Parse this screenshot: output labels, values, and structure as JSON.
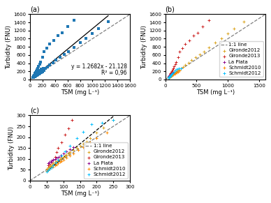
{
  "chart_data": [
    {
      "type": "scatter",
      "title": "(a)",
      "x_label": "TSM (mg L⁻¹)",
      "y_label": "Turbidity (FNU)",
      "annotations": [
        "y = 1.2682x - 21.128",
        "R² = 0,96"
      ],
      "xlim": [
        0,
        1600
      ],
      "ylim": [
        0,
        1600
      ],
      "xticks": [
        0,
        200,
        400,
        600,
        800,
        1000,
        1200,
        1400,
        1600
      ],
      "yticks": [
        0,
        200,
        400,
        600,
        800,
        1000,
        1200,
        1400,
        1600
      ],
      "grid": false,
      "series": [
        {
          "type": "line",
          "color": "gray",
          "line_style": "dashed",
          "x": [
            0,
            1600
          ],
          "values": [
            0,
            1600
          ]
        },
        {
          "type": "line",
          "color": "black",
          "line_style": "solid",
          "x": [
            50,
            1250
          ],
          "values": [
            42.282,
            1564.122
          ]
        },
        {
          "type": "scatter",
          "color": "#1f77b4",
          "marker": "square",
          "x": [
            50,
            55,
            58,
            60,
            62,
            65,
            68,
            70,
            75,
            80,
            85,
            90,
            95,
            100,
            105,
            110,
            115,
            120,
            130,
            140,
            150,
            160,
            170,
            180,
            200,
            220,
            250,
            280,
            320,
            370,
            420,
            480,
            550,
            620,
            700,
            800,
            900,
            1000,
            1100,
            1250,
            55,
            60,
            65,
            70,
            75,
            80,
            85,
            95,
            105,
            115,
            125,
            140,
            155,
            170,
            200,
            230,
            270,
            320,
            380,
            450,
            520,
            600,
            700,
            55,
            60,
            63,
            66,
            70,
            75,
            80,
            87,
            93,
            100,
            110,
            120,
            130,
            50,
            55,
            60,
            65,
            70,
            75,
            80,
            85,
            90,
            95,
            100,
            110,
            120,
            130,
            145,
            160,
            180,
            200,
            230,
            50,
            55,
            60,
            65,
            70,
            78,
            85,
            95,
            105,
            120,
            140,
            160,
            185,
            215,
            250
          ],
          "values": [
            55,
            60,
            62,
            65,
            68,
            72,
            75,
            80,
            85,
            90,
            95,
            100,
            105,
            110,
            115,
            120,
            125,
            130,
            140,
            150,
            160,
            170,
            180,
            195,
            220,
            245,
            280,
            315,
            360,
            415,
            470,
            540,
            615,
            690,
            780,
            900,
            1010,
            1120,
            1240,
            1420,
            70,
            78,
            85,
            95,
            110,
            130,
            150,
            175,
            210,
            240,
            280,
            330,
            380,
            430,
            540,
            680,
            775,
            870,
            960,
            1080,
            1150,
            1300,
            1450,
            80,
            85,
            88,
            92,
            95,
            100,
            105,
            110,
            115,
            125,
            135,
            145,
            155,
            45,
            50,
            55,
            60,
            65,
            70,
            75,
            80,
            85,
            90,
            95,
            105,
            115,
            125,
            140,
            155,
            175,
            195,
            220,
            42,
            48,
            55,
            62,
            70,
            82,
            95,
            115,
            135,
            160,
            195,
            225,
            260,
            265,
            280
          ]
        }
      ]
    },
    {
      "type": "scatter",
      "title": "(b)",
      "x_label": "TSM (mg L⁻¹)",
      "y_label": "Turbidity (FNU)",
      "xlim": [
        0,
        1600
      ],
      "ylim": [
        0,
        1600
      ],
      "xticks": [
        0,
        500,
        1000,
        1500
      ],
      "yticks": [
        0,
        200,
        400,
        600,
        800,
        1000,
        1200,
        1400,
        1600
      ],
      "grid": false,
      "legend": "lower right",
      "series": [
        {
          "name": "1:1 line",
          "type": "line",
          "color": "gray",
          "line_style": "dashed",
          "x": [
            0,
            1600
          ],
          "values": [
            0,
            1600
          ]
        },
        {
          "name": "Gironde2012",
          "type": "scatter",
          "color": "#DAA520",
          "marker": "plus",
          "x": [
            50,
            55,
            58,
            60,
            62,
            65,
            68,
            70,
            75,
            80,
            85,
            90,
            95,
            100,
            105,
            110,
            115,
            120,
            130,
            140,
            150,
            160,
            170,
            180,
            200,
            220,
            250,
            280,
            320,
            370,
            420,
            480,
            550,
            620,
            700,
            800,
            900,
            1000,
            1100,
            1250
          ],
          "values": [
            55,
            60,
            62,
            65,
            68,
            72,
            75,
            80,
            85,
            90,
            95,
            100,
            105,
            110,
            115,
            120,
            125,
            130,
            140,
            150,
            160,
            170,
            180,
            195,
            220,
            245,
            280,
            315,
            360,
            415,
            470,
            540,
            615,
            690,
            780,
            900,
            1010,
            1120,
            1240,
            1420
          ]
        },
        {
          "name": "Gironde2013",
          "type": "scatter",
          "color": "#CC2222",
          "marker": "plus",
          "x": [
            55,
            60,
            65,
            70,
            75,
            80,
            85,
            95,
            105,
            115,
            125,
            140,
            155,
            170,
            200,
            230,
            270,
            320,
            380,
            450,
            520,
            600,
            700
          ],
          "values": [
            70,
            78,
            85,
            95,
            110,
            130,
            150,
            175,
            210,
            240,
            280,
            330,
            380,
            430,
            540,
            680,
            775,
            870,
            960,
            1080,
            1150,
            1300,
            1450
          ]
        },
        {
          "name": "La Plata",
          "type": "scatter",
          "color": "#8B008B",
          "marker": "plus",
          "x": [
            55,
            60,
            63,
            66,
            70,
            75,
            80,
            87,
            93,
            100,
            110,
            120,
            130
          ],
          "values": [
            80,
            85,
            88,
            92,
            95,
            100,
            105,
            110,
            115,
            125,
            135,
            145,
            155
          ]
        },
        {
          "name": "Schmidt2010",
          "type": "scatter",
          "color": "#FF8C00",
          "marker": "plus",
          "x": [
            50,
            55,
            60,
            65,
            70,
            75,
            80,
            85,
            90,
            95,
            100,
            110,
            120,
            130,
            145,
            160,
            180,
            200,
            230
          ],
          "values": [
            45,
            50,
            55,
            60,
            65,
            70,
            75,
            80,
            85,
            90,
            95,
            105,
            115,
            125,
            140,
            155,
            175,
            195,
            220
          ]
        },
        {
          "name": "Schmidt2012",
          "type": "scatter",
          "color": "#00BFFF",
          "marker": "plus",
          "x": [
            50,
            55,
            60,
            65,
            70,
            78,
            85,
            95,
            105,
            120,
            140,
            160,
            185,
            215,
            250
          ],
          "values": [
            42,
            48,
            55,
            62,
            70,
            82,
            95,
            115,
            135,
            160,
            195,
            225,
            260,
            265,
            280
          ]
        }
      ]
    },
    {
      "type": "scatter",
      "title": "(c)",
      "x_label": "TSM (mg L⁻¹)",
      "y_label": "Turbidity (FNU)",
      "xlim": [
        0,
        300
      ],
      "ylim": [
        0,
        300
      ],
      "xticks": [
        0,
        50,
        100,
        150,
        200,
        250,
        300
      ],
      "yticks": [
        0,
        50,
        100,
        150,
        200,
        250,
        300
      ],
      "grid": false,
      "legend": "lower right",
      "series": [
        {
          "name": "1:1 line",
          "type": "line",
          "color": "gray",
          "line_style": "dashed",
          "x": [
            0,
            300
          ],
          "values": [
            0,
            300
          ]
        },
        {
          "type": "line",
          "color": "black",
          "line_style": "dashed",
          "x": [
            50,
            250
          ],
          "values": [
            42.282,
            295.922
          ]
        },
        {
          "name": "Gironde2012",
          "type": "scatter",
          "color": "#DAA520",
          "marker": "plus",
          "x": [
            50,
            55,
            58,
            60,
            62,
            65,
            68,
            70,
            75,
            80,
            85,
            90,
            95,
            100,
            105,
            110,
            115,
            120,
            130,
            140,
            150,
            160,
            170,
            180,
            200,
            220,
            250
          ],
          "values": [
            55,
            60,
            62,
            65,
            68,
            72,
            75,
            80,
            85,
            90,
            95,
            100,
            105,
            110,
            115,
            120,
            125,
            130,
            140,
            150,
            160,
            170,
            180,
            195,
            220,
            245,
            280
          ]
        },
        {
          "name": "Gironde2013",
          "type": "scatter",
          "color": "#CC2222",
          "marker": "plus",
          "x": [
            55,
            60,
            65,
            70,
            75,
            80,
            85,
            95,
            105,
            115,
            125
          ],
          "values": [
            70,
            78,
            85,
            95,
            110,
            130,
            150,
            175,
            210,
            240,
            280
          ]
        },
        {
          "name": "La Plata",
          "type": "scatter",
          "color": "#8B008B",
          "marker": "plus",
          "x": [
            55,
            60,
            63,
            66,
            70,
            75,
            80,
            87,
            93,
            100,
            110,
            120,
            130
          ],
          "values": [
            80,
            85,
            88,
            92,
            95,
            100,
            105,
            110,
            115,
            125,
            135,
            145,
            155
          ]
        },
        {
          "name": "Schmidt2010",
          "type": "scatter",
          "color": "#FF8C00",
          "marker": "plus",
          "x": [
            50,
            55,
            60,
            65,
            70,
            75,
            80,
            85,
            90,
            95,
            100,
            110,
            120,
            130,
            145,
            160,
            180,
            200,
            230
          ],
          "values": [
            45,
            50,
            55,
            60,
            65,
            70,
            75,
            80,
            85,
            90,
            95,
            105,
            115,
            125,
            140,
            155,
            175,
            195,
            220
          ]
        },
        {
          "name": "Schmidt2012",
          "type": "scatter",
          "color": "#00BFFF",
          "marker": "plus",
          "x": [
            50,
            55,
            60,
            65,
            70,
            78,
            85,
            95,
            105,
            120,
            140,
            160,
            185,
            215,
            250
          ],
          "values": [
            42,
            48,
            55,
            62,
            70,
            82,
            95,
            115,
            135,
            160,
            195,
            225,
            260,
            265,
            280
          ]
        }
      ]
    }
  ]
}
